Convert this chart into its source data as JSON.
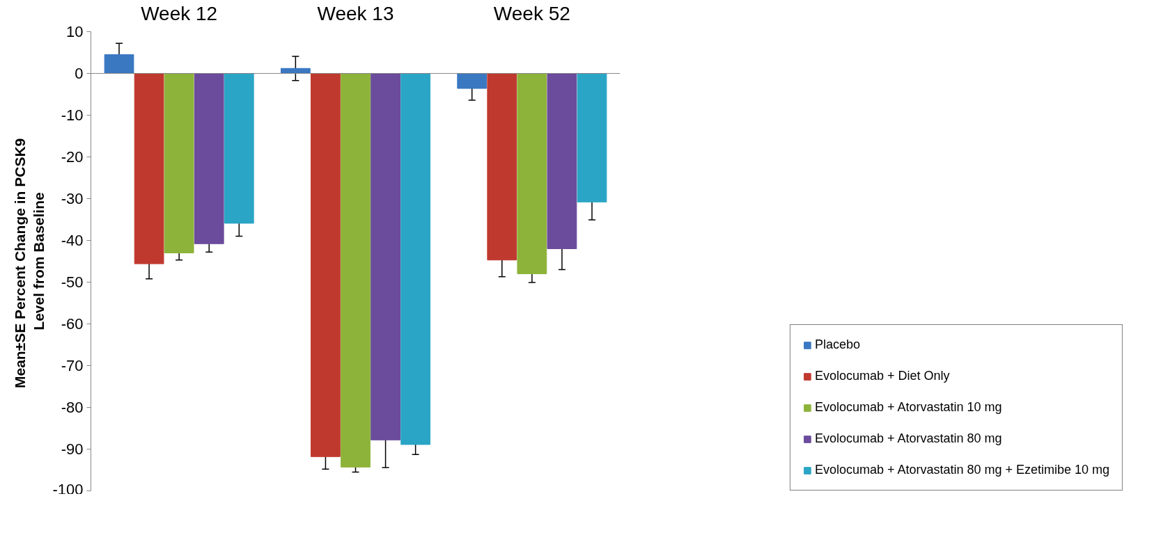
{
  "chart_data": {
    "type": "bar",
    "ylabel": "Mean±SE Percent  Change in PCSK9\nLevel from Baseline",
    "categories": [
      "Week 12",
      "Week 13",
      "Week 52"
    ],
    "series": [
      {
        "name": "Placebo",
        "color": "#3a78c2",
        "values": [
          4.5,
          1.2,
          -3.6
        ],
        "errors": [
          2.7,
          2.9,
          2.8
        ]
      },
      {
        "name": "Evolocumab + Diet Only",
        "color": "#c0392f",
        "values": [
          -45.6,
          -91.8,
          -44.7
        ],
        "errors": [
          3.6,
          3.0,
          4.0
        ]
      },
      {
        "name": "Evolocumab + Atorvastatin 10 mg",
        "color": "#8db33a",
        "values": [
          -43.0,
          -94.3,
          -48.0
        ],
        "errors": [
          1.7,
          1.2,
          2.1
        ]
      },
      {
        "name": "Evolocumab + Atorvastatin 80 mg",
        "color": "#6b4b9b",
        "values": [
          -40.8,
          -87.8,
          -42.0
        ],
        "errors": [
          2.0,
          6.6,
          5.0
        ]
      },
      {
        "name": "Evolocumab + Atorvastatin 80 mg + Ezetimibe 10 mg",
        "color": "#2ba5c5",
        "values": [
          -35.9,
          -88.9,
          -30.8
        ],
        "errors": [
          3.1,
          2.4,
          4.3
        ]
      }
    ],
    "ylim": [
      -100,
      10
    ],
    "yticks": [
      -100,
      -90,
      -80,
      -70,
      -60,
      -50,
      -40,
      -30,
      -20,
      -10,
      0,
      10
    ],
    "grid": false,
    "legend": "bottom right"
  }
}
